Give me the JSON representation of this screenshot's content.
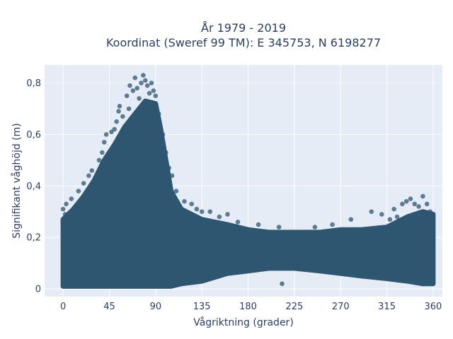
{
  "chart_data": {
    "type": "scatter",
    "title": [
      "År 1979 - 2019",
      "Koordinat (Sweref 99 TM): E 345753, N 6198277"
    ],
    "xlabel": "Vågriktning (grader)",
    "ylabel": "Signifikant våghöjd (m)",
    "xlim": [
      -18,
      369
    ],
    "ylim": [
      -0.03,
      0.87
    ],
    "xticks": [
      0,
      45,
      90,
      135,
      180,
      225,
      270,
      315,
      360
    ],
    "xtick_labels": [
      "0",
      "45",
      "90",
      "135",
      "180",
      "225",
      "270",
      "315",
      "360"
    ],
    "yticks": [
      0,
      0.2,
      0.4,
      0.6,
      0.8
    ],
    "ytick_labels": [
      "0",
      "0,2",
      "0,4",
      "0,6",
      "0,8"
    ],
    "grid": true,
    "colors": {
      "marker": "#2f5670",
      "plot_bg": "#e5ecf6",
      "grid": "#ffffff"
    },
    "envelope": [
      {
        "x": 0,
        "low": 0.01,
        "high": 0.27
      },
      {
        "x": 10,
        "low": 0.01,
        "high": 0.31
      },
      {
        "x": 20,
        "low": 0.01,
        "high": 0.36
      },
      {
        "x": 30,
        "low": 0.01,
        "high": 0.42
      },
      {
        "x": 40,
        "low": 0.01,
        "high": 0.5
      },
      {
        "x": 50,
        "low": 0.01,
        "high": 0.56
      },
      {
        "x": 60,
        "low": 0.01,
        "high": 0.63
      },
      {
        "x": 70,
        "low": 0.01,
        "high": 0.68
      },
      {
        "x": 80,
        "low": 0.01,
        "high": 0.73
      },
      {
        "x": 90,
        "low": 0.01,
        "high": 0.72
      },
      {
        "x": 95,
        "low": 0.01,
        "high": 0.62
      },
      {
        "x": 100,
        "low": 0.01,
        "high": 0.5
      },
      {
        "x": 105,
        "low": 0.01,
        "high": 0.38
      },
      {
        "x": 115,
        "low": 0.02,
        "high": 0.31
      },
      {
        "x": 135,
        "low": 0.03,
        "high": 0.27
      },
      {
        "x": 160,
        "low": 0.06,
        "high": 0.25
      },
      {
        "x": 180,
        "low": 0.07,
        "high": 0.23
      },
      {
        "x": 200,
        "low": 0.08,
        "high": 0.22
      },
      {
        "x": 225,
        "low": 0.08,
        "high": 0.22
      },
      {
        "x": 250,
        "low": 0.07,
        "high": 0.22
      },
      {
        "x": 270,
        "low": 0.06,
        "high": 0.23
      },
      {
        "x": 290,
        "low": 0.05,
        "high": 0.23
      },
      {
        "x": 315,
        "low": 0.04,
        "high": 0.24
      },
      {
        "x": 335,
        "low": 0.03,
        "high": 0.28
      },
      {
        "x": 350,
        "low": 0.02,
        "high": 0.3
      },
      {
        "x": 360,
        "low": 0.02,
        "high": 0.29
      }
    ],
    "points": [
      {
        "x": 3,
        "y": 0.33
      },
      {
        "x": 8,
        "y": 0.35
      },
      {
        "x": 15,
        "y": 0.38
      },
      {
        "x": 20,
        "y": 0.41
      },
      {
        "x": 25,
        "y": 0.44
      },
      {
        "x": 28,
        "y": 0.46
      },
      {
        "x": 35,
        "y": 0.5
      },
      {
        "x": 38,
        "y": 0.53
      },
      {
        "x": 40,
        "y": 0.57
      },
      {
        "x": 42,
        "y": 0.6
      },
      {
        "x": 47,
        "y": 0.61
      },
      {
        "x": 50,
        "y": 0.62
      },
      {
        "x": 52,
        "y": 0.65
      },
      {
        "x": 54,
        "y": 0.69
      },
      {
        "x": 55,
        "y": 0.71
      },
      {
        "x": 58,
        "y": 0.67
      },
      {
        "x": 62,
        "y": 0.75
      },
      {
        "x": 64,
        "y": 0.7
      },
      {
        "x": 65,
        "y": 0.79
      },
      {
        "x": 68,
        "y": 0.77
      },
      {
        "x": 70,
        "y": 0.82
      },
      {
        "x": 72,
        "y": 0.78
      },
      {
        "x": 74,
        "y": 0.74
      },
      {
        "x": 76,
        "y": 0.8
      },
      {
        "x": 78,
        "y": 0.83
      },
      {
        "x": 80,
        "y": 0.81
      },
      {
        "x": 82,
        "y": 0.79
      },
      {
        "x": 84,
        "y": 0.76
      },
      {
        "x": 86,
        "y": 0.8
      },
      {
        "x": 88,
        "y": 0.77
      },
      {
        "x": 90,
        "y": 0.75
      },
      {
        "x": 93,
        "y": 0.68
      },
      {
        "x": 97,
        "y": 0.6
      },
      {
        "x": 100,
        "y": 0.53
      },
      {
        "x": 103,
        "y": 0.47
      },
      {
        "x": 106,
        "y": 0.44
      },
      {
        "x": 110,
        "y": 0.38
      },
      {
        "x": 118,
        "y": 0.34
      },
      {
        "x": 125,
        "y": 0.33
      },
      {
        "x": 130,
        "y": 0.31
      },
      {
        "x": 135,
        "y": 0.3
      },
      {
        "x": 143,
        "y": 0.3
      },
      {
        "x": 152,
        "y": 0.28
      },
      {
        "x": 160,
        "y": 0.29
      },
      {
        "x": 170,
        "y": 0.26
      },
      {
        "x": 190,
        "y": 0.25
      },
      {
        "x": 210,
        "y": 0.24
      },
      {
        "x": 245,
        "y": 0.24
      },
      {
        "x": 262,
        "y": 0.25
      },
      {
        "x": 280,
        "y": 0.27
      },
      {
        "x": 300,
        "y": 0.3
      },
      {
        "x": 310,
        "y": 0.29
      },
      {
        "x": 318,
        "y": 0.27
      },
      {
        "x": 322,
        "y": 0.31
      },
      {
        "x": 325,
        "y": 0.28
      },
      {
        "x": 330,
        "y": 0.33
      },
      {
        "x": 334,
        "y": 0.34
      },
      {
        "x": 338,
        "y": 0.35
      },
      {
        "x": 342,
        "y": 0.33
      },
      {
        "x": 346,
        "y": 0.32
      },
      {
        "x": 350,
        "y": 0.36
      },
      {
        "x": 354,
        "y": 0.33
      },
      {
        "x": 357,
        "y": 0.3
      },
      {
        "x": 359,
        "y": 0.28
      },
      {
        "x": 0,
        "y": 0.31
      },
      {
        "x": 2,
        "y": 0.29
      },
      {
        "x": 95,
        "y": 0.01
      },
      {
        "x": 213,
        "y": 0.02
      },
      {
        "x": 300,
        "y": 0.05
      }
    ]
  }
}
